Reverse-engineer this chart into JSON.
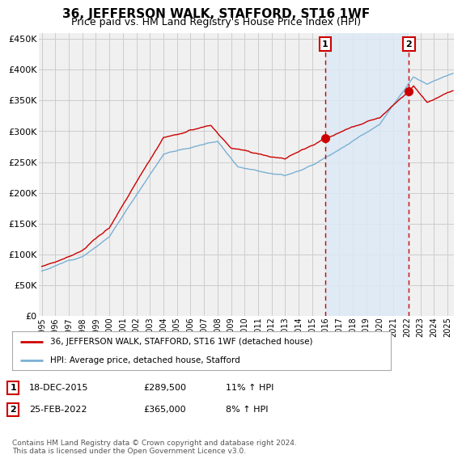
{
  "title": "36, JEFFERSON WALK, STAFFORD, ST16 1WF",
  "subtitle": "Price paid vs. HM Land Registry's House Price Index (HPI)",
  "title_fontsize": 11,
  "subtitle_fontsize": 9,
  "ytick_values": [
    0,
    50000,
    100000,
    150000,
    200000,
    250000,
    300000,
    350000,
    400000,
    450000
  ],
  "ylim": [
    0,
    460000
  ],
  "xlim_start": 1994.8,
  "xlim_end": 2025.5,
  "grid_color": "#cccccc",
  "background_color": "#ffffff",
  "plot_bg_color": "#f0f0f0",
  "red_line_color": "#cc0000",
  "blue_line_color": "#7ab0d4",
  "shade_color": "#dce9f5",
  "marker1_date": 2015.96,
  "marker1_value": 289500,
  "marker2_date": 2022.15,
  "marker2_value": 365000,
  "vline_color": "#cc0000",
  "legend_label_red": "36, JEFFERSON WALK, STAFFORD, ST16 1WF (detached house)",
  "legend_label_blue": "HPI: Average price, detached house, Stafford",
  "annotation1_label": "1",
  "annotation2_label": "2",
  "table_row1": [
    "1",
    "18-DEC-2015",
    "£289,500",
    "11% ↑ HPI"
  ],
  "table_row2": [
    "2",
    "25-FEB-2022",
    "£365,000",
    "8% ↑ HPI"
  ],
  "footnote": "Contains HM Land Registry data © Crown copyright and database right 2024.\nThis data is licensed under the Open Government Licence v3.0.",
  "xtick_years": [
    1995,
    1996,
    1997,
    1998,
    1999,
    2000,
    2001,
    2002,
    2003,
    2004,
    2005,
    2006,
    2007,
    2008,
    2009,
    2010,
    2011,
    2012,
    2013,
    2014,
    2015,
    2016,
    2017,
    2018,
    2019,
    2020,
    2021,
    2022,
    2023,
    2024,
    2025
  ]
}
